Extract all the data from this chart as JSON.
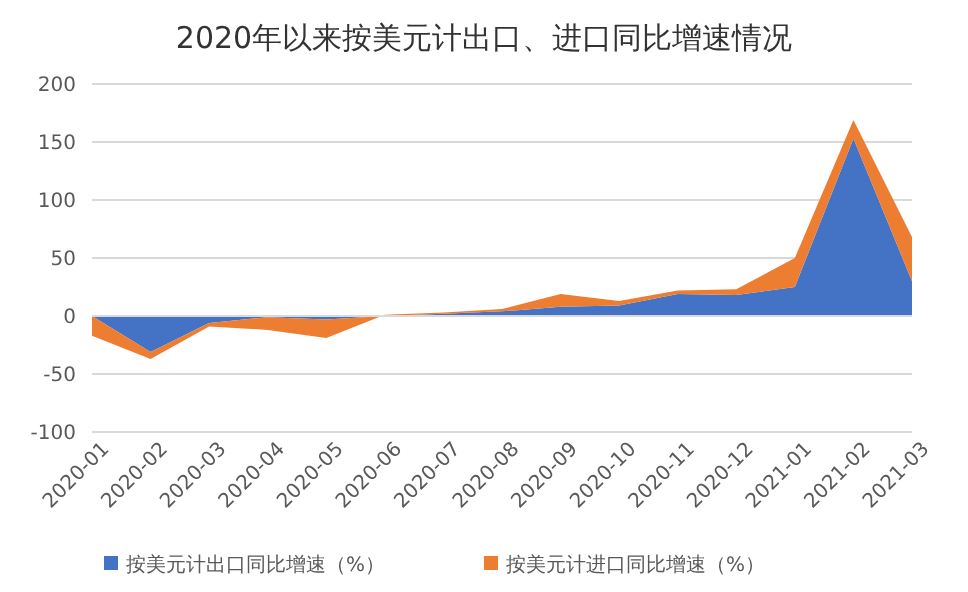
{
  "chart_data": {
    "type": "area",
    "title": "2020年以来按美元计出口、进口同比增速情况",
    "stacked": true,
    "categories": [
      "2020-01",
      "2020-02",
      "2020-03",
      "2020-04",
      "2020-05",
      "2020-06",
      "2020-07",
      "2020-08",
      "2020-09",
      "2020-10",
      "2020-11",
      "2020-12",
      "2021-01",
      "2021-02",
      "2021-03"
    ],
    "series": [
      {
        "name": "按美元计出口同比增速（%）",
        "color": "#4472c4",
        "values": [
          0,
          -31,
          -6,
          -1,
          -3,
          0,
          2,
          4,
          8,
          9,
          19,
          18,
          25,
          153,
          30
        ]
      },
      {
        "name": "按美元计进口同比增速（%）",
        "color": "#ed7d31",
        "values": [
          -17,
          -6,
          -3,
          -11,
          -16,
          1,
          1,
          2,
          11,
          4,
          3,
          5,
          25,
          16,
          38
        ]
      }
    ],
    "ylim": [
      -100,
      200
    ],
    "yticks": [
      -100,
      -50,
      0,
      50,
      100,
      150,
      200
    ],
    "grid": "y",
    "legend": "bottom"
  }
}
